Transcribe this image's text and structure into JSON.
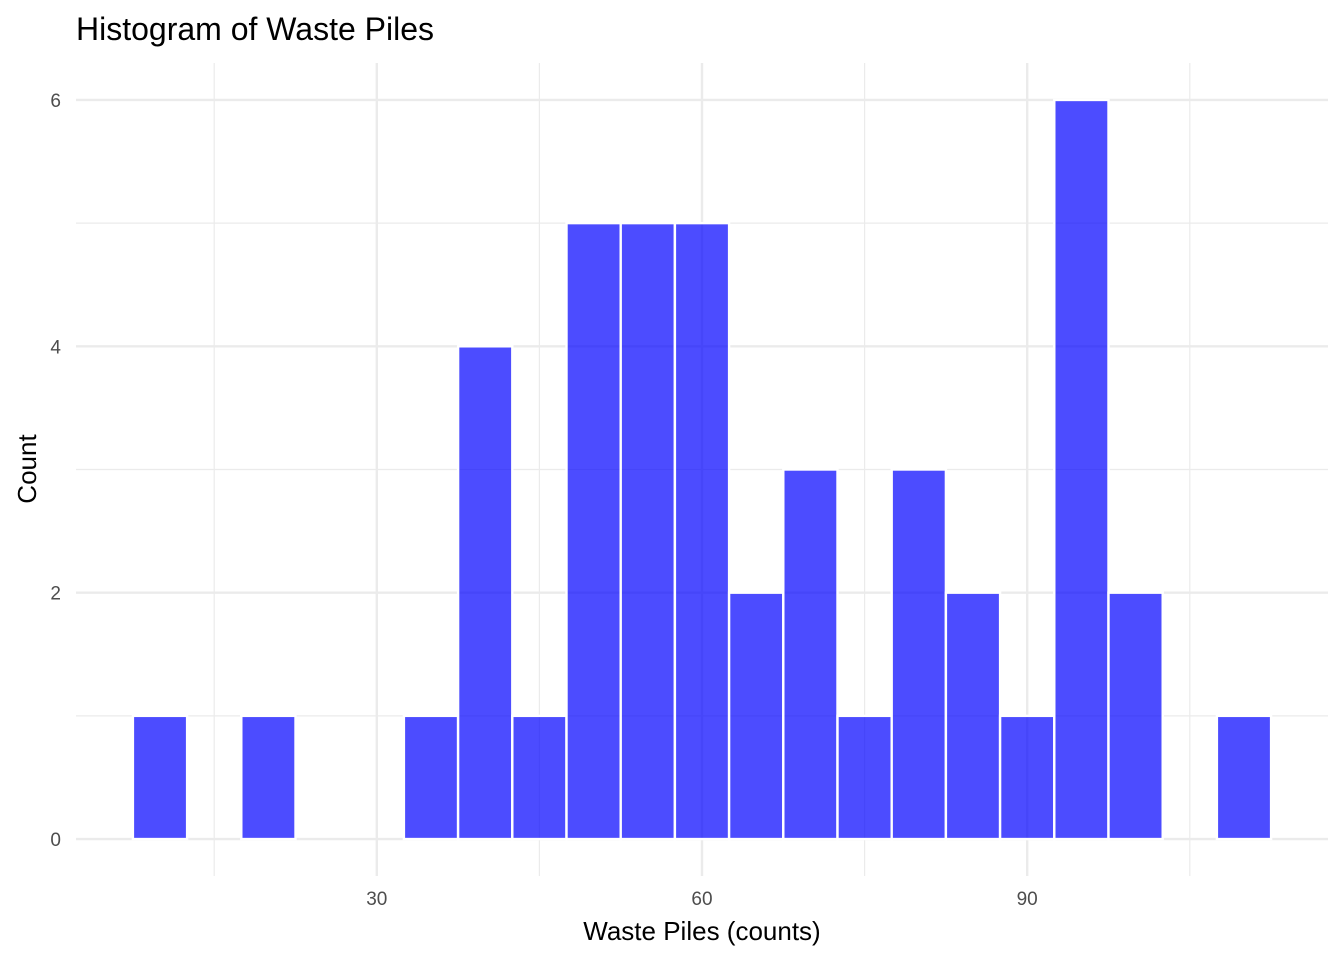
{
  "chart_data": {
    "type": "bar",
    "title": "Histogram of Waste Piles",
    "xlabel": "Waste Piles (counts)",
    "ylabel": "Count",
    "bin_width": 5,
    "bins": [
      {
        "start": 7.5,
        "end": 12.5,
        "count": 1
      },
      {
        "start": 12.5,
        "end": 17.5,
        "count": 0
      },
      {
        "start": 17.5,
        "end": 22.5,
        "count": 1
      },
      {
        "start": 22.5,
        "end": 27.5,
        "count": 0
      },
      {
        "start": 27.5,
        "end": 32.5,
        "count": 0
      },
      {
        "start": 32.5,
        "end": 37.5,
        "count": 1
      },
      {
        "start": 37.5,
        "end": 42.5,
        "count": 4
      },
      {
        "start": 42.5,
        "end": 47.5,
        "count": 1
      },
      {
        "start": 47.5,
        "end": 52.5,
        "count": 5
      },
      {
        "start": 52.5,
        "end": 57.5,
        "count": 5
      },
      {
        "start": 57.5,
        "end": 62.5,
        "count": 5
      },
      {
        "start": 62.5,
        "end": 67.5,
        "count": 2
      },
      {
        "start": 67.5,
        "end": 72.5,
        "count": 3
      },
      {
        "start": 72.5,
        "end": 77.5,
        "count": 1
      },
      {
        "start": 77.5,
        "end": 82.5,
        "count": 3
      },
      {
        "start": 82.5,
        "end": 87.5,
        "count": 2
      },
      {
        "start": 87.5,
        "end": 92.5,
        "count": 1
      },
      {
        "start": 92.5,
        "end": 97.5,
        "count": 6
      },
      {
        "start": 97.5,
        "end": 102.5,
        "count": 2
      },
      {
        "start": 102.5,
        "end": 107.5,
        "count": 0
      },
      {
        "start": 107.5,
        "end": 112.5,
        "count": 1
      }
    ],
    "xlim": [
      2.25,
      117.75
    ],
    "ylim": [
      -0.3,
      6.3
    ],
    "x_ticks": [
      30,
      60,
      90
    ],
    "x_minor_ticks": [
      15,
      45,
      75,
      105
    ],
    "y_ticks": [
      0,
      2,
      4,
      6
    ],
    "y_minor_ticks": [
      1,
      3,
      5
    ],
    "bar_color": "#0000ff",
    "bar_opacity": 0.7,
    "bar_outline_color": "#ffffff",
    "grid": true,
    "grid_color": "#ebebeb",
    "background": "#ffffff"
  }
}
